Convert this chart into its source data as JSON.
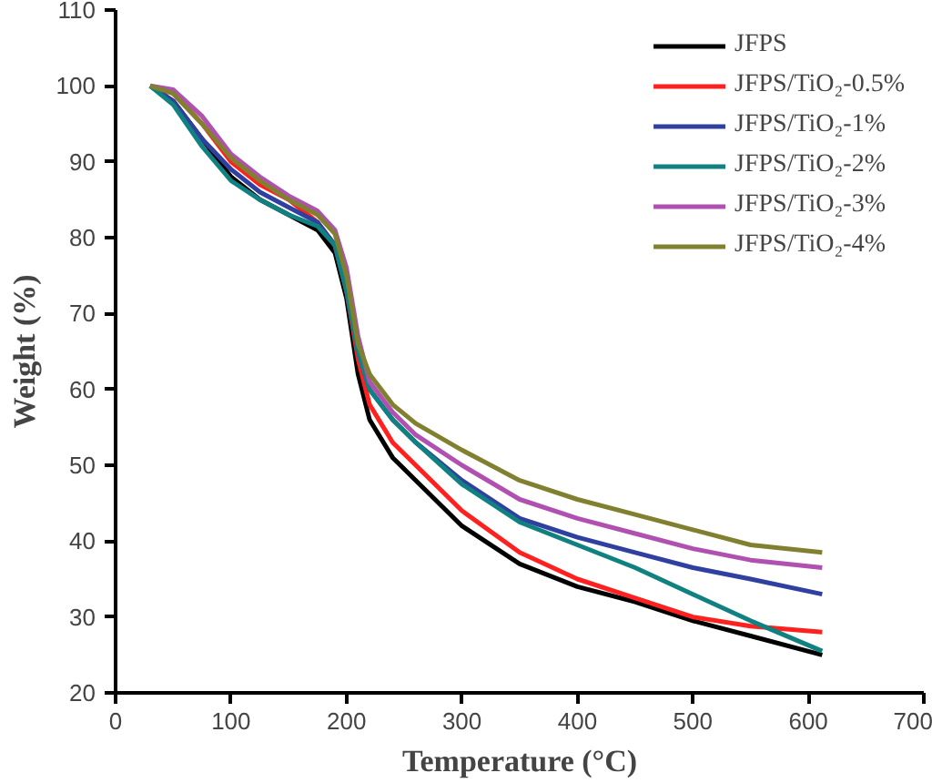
{
  "chart_data": {
    "type": "line",
    "xlabel": "Temperature (°C)",
    "ylabel": "Weight (%)",
    "x": [
      30,
      50,
      75,
      100,
      125,
      150,
      175,
      190,
      200,
      210,
      220,
      240,
      260,
      300,
      350,
      400,
      450,
      500,
      550,
      612
    ],
    "xlim": [
      0,
      700
    ],
    "xticks": [
      0,
      100,
      200,
      300,
      400,
      500,
      600,
      700
    ],
    "ylim": [
      20,
      110
    ],
    "yticks": [
      20,
      30,
      40,
      50,
      60,
      70,
      80,
      90,
      100,
      110
    ],
    "grid": false,
    "legend": "top right",
    "line_style": "solid",
    "marker": "none",
    "series": [
      {
        "name": "JFPS",
        "color": "#000000",
        "values": [
          100,
          98,
          93,
          88,
          85,
          83,
          81,
          78,
          72,
          62,
          56,
          51,
          48,
          42,
          37,
          34,
          32,
          29.5,
          27.5,
          25
        ]
      },
      {
        "name": "JFPS/TiO₂-0.5%",
        "color": "#ff2020",
        "values": [
          100,
          99,
          95,
          90,
          87,
          85,
          82,
          79,
          73,
          64,
          58,
          53,
          50,
          44,
          38.5,
          35,
          32.5,
          30,
          28.8,
          28
        ]
      },
      {
        "name": "JFPS/TiO₂-1%",
        "color": "#3040a0",
        "values": [
          100,
          98,
          93,
          89,
          86,
          84,
          82,
          79,
          73,
          65,
          60,
          56,
          53,
          48,
          43,
          40.5,
          38.5,
          36.5,
          35,
          33
        ]
      },
      {
        "name": "JFPS/TiO₂-2%",
        "color": "#108080",
        "values": [
          100,
          97.5,
          92,
          87.5,
          85,
          83,
          81.5,
          79,
          73,
          65,
          60,
          56,
          53,
          47.5,
          42.5,
          39.5,
          36.5,
          33,
          29.5,
          25.5
        ]
      },
      {
        "name": "JFPS/TiO₂-3%",
        "color": "#b050b0",
        "values": [
          100,
          99.5,
          96,
          91,
          88,
          85.5,
          83.5,
          81,
          76,
          67,
          61,
          57,
          54,
          50,
          45.5,
          43,
          41,
          39,
          37.5,
          36.5
        ]
      },
      {
        "name": "JFPS/TiO₂-4%",
        "color": "#808030",
        "values": [
          100,
          99,
          95,
          90.5,
          87.5,
          85,
          83,
          80.5,
          75,
          66,
          62,
          58,
          55.5,
          52,
          48,
          45.5,
          43.5,
          41.5,
          39.5,
          38.5
        ]
      }
    ]
  }
}
